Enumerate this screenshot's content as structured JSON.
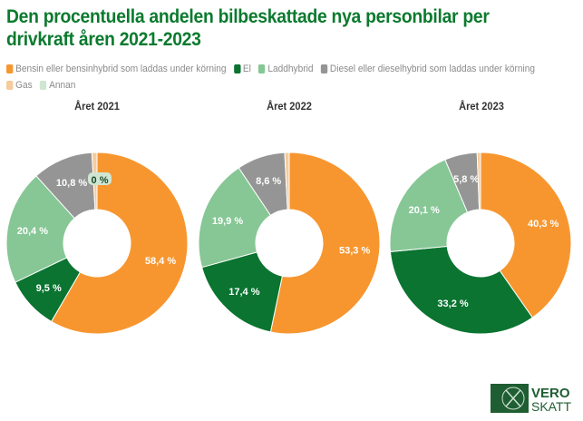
{
  "chart_data": [
    {
      "type": "pie",
      "subtype": "donut",
      "title": "Året 2021",
      "categories": [
        "Bensin eller bensinhybrid som laddas under körning",
        "El",
        "Laddhybrid",
        "Diesel eller dieselhybrid som laddas under körning",
        "Gas",
        "Annan"
      ],
      "values": [
        58.4,
        9.5,
        20.4,
        10.8,
        0.9,
        0.0
      ],
      "labels": [
        "58,4 %",
        "9,5 %",
        "20,4 %",
        "10,8 %",
        "",
        "0 %"
      ]
    },
    {
      "type": "pie",
      "subtype": "donut",
      "title": "Året 2022",
      "categories": [
        "Bensin eller bensinhybrid som laddas under körning",
        "El",
        "Laddhybrid",
        "Diesel eller dieselhybrid som laddas under körning",
        "Gas",
        "Annan"
      ],
      "values": [
        53.3,
        17.4,
        19.9,
        8.6,
        0.8,
        0.0
      ],
      "labels": [
        "53,3 %",
        "17,4 %",
        "19,9 %",
        "8,6 %",
        "",
        ""
      ]
    },
    {
      "type": "pie",
      "subtype": "donut",
      "title": "Året 2023",
      "categories": [
        "Bensin eller bensinhybrid som laddas under körning",
        "El",
        "Laddhybrid",
        "Diesel eller dieselhybrid som laddas under körning",
        "Gas",
        "Annan"
      ],
      "values": [
        40.3,
        33.2,
        20.1,
        5.8,
        0.6,
        0.0
      ],
      "labels": [
        "40,3 %",
        "33,2 %",
        "20,1 %",
        "5,8 %",
        "",
        ""
      ]
    }
  ],
  "header": {
    "title": "Den procentuella andelen bilbeskattade nya personbilar per drivkraft åren 2021-2023"
  },
  "legend": {
    "placement": "top",
    "items": [
      {
        "label": "Bensin eller bensinhybrid som laddas under körning",
        "color": "#f7962f"
      },
      {
        "label": "El",
        "color": "#0a7430"
      },
      {
        "label": "Laddhybrid",
        "color": "#86c795"
      },
      {
        "label": "Diesel eller dieselhybrid som laddas under körning",
        "color": "#959595"
      },
      {
        "label": "Gas",
        "color": "#f5cc9c"
      },
      {
        "label": "Annan",
        "color": "#cfe6d2"
      }
    ]
  },
  "colors": [
    "#f7962f",
    "#0a7430",
    "#86c795",
    "#959595",
    "#f5cc9c",
    "#cfe6d2"
  ],
  "logo": {
    "line1": "VERO",
    "line2": "SKATT",
    "color": "#1e5e32"
  }
}
